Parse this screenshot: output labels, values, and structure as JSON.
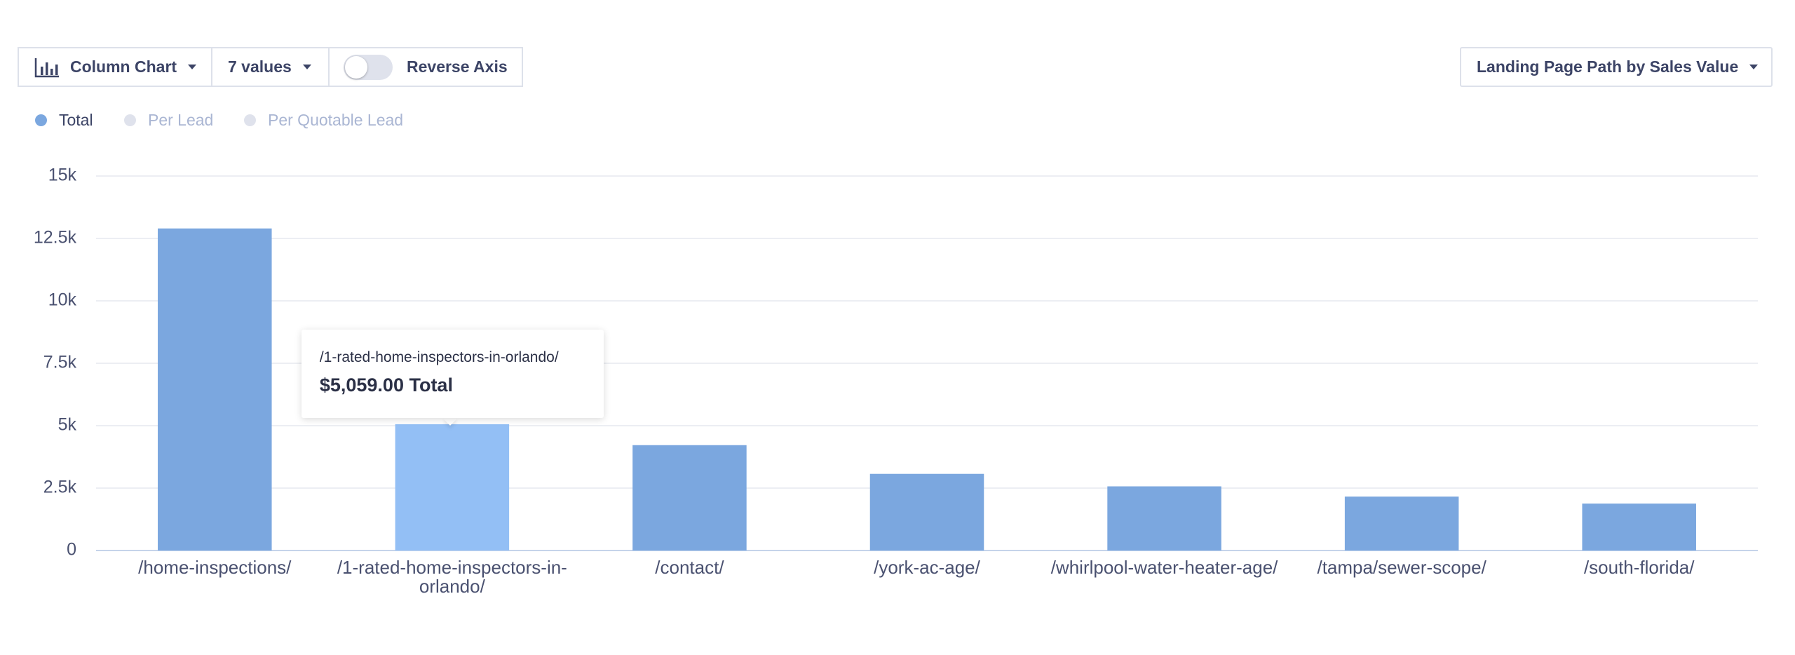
{
  "toolbar": {
    "chart_type": "Column Chart",
    "value_count": "7 values",
    "reverse_axis": "Reverse Axis",
    "report": "Landing Page Path by Sales Value"
  },
  "legend": [
    "Total",
    "Per Lead",
    "Per Quotable Lead"
  ],
  "chart_data": {
    "type": "bar",
    "categories": [
      "/home-inspections/",
      "/1-rated-home-inspectors-in-orlando/",
      "/contact/",
      "/york-ac-age/",
      "/whirlpool-water-heater-age/",
      "/tampa/sewer-scope/",
      "/south-florida/"
    ],
    "series": [
      {
        "name": "Total",
        "color": "#7ba7df",
        "values": [
          12900,
          5059,
          4220,
          3070,
          2570,
          2160,
          1880
        ]
      }
    ],
    "ylim": [
      0,
      15000
    ],
    "yticks": [
      0,
      {
        "value": 2500,
        "label": "2.5k"
      },
      {
        "value": 5000,
        "label": "5k"
      },
      {
        "value": 7500,
        "label": "7.5k"
      },
      {
        "value": 10000,
        "label": "10k"
      },
      {
        "value": 12500,
        "label": "12.5k"
      },
      {
        "value": 15000,
        "label": "15k"
      }
    ],
    "grid": true,
    "tooltip": {
      "index": 1,
      "color": "#93bff5",
      "value_label": "$5,059.00 Total"
    }
  }
}
